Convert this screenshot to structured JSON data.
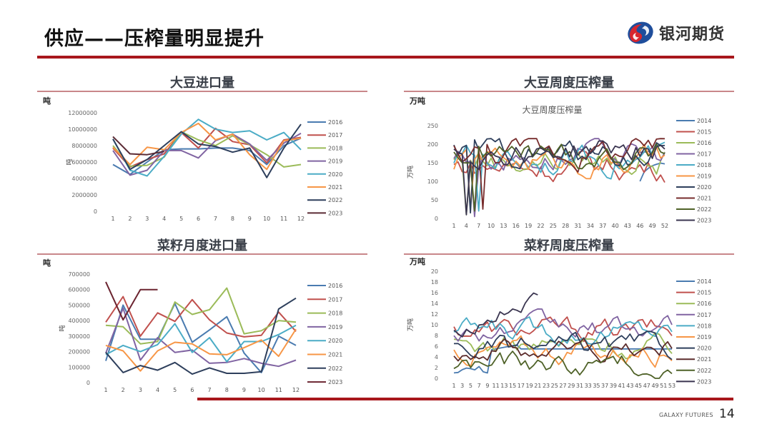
{
  "header": {
    "title": "供应——压榨量明显提升",
    "logo_text": "银河期货"
  },
  "footer": {
    "brand": "GALAXY FUTURES",
    "page_number": "14"
  },
  "panels": [
    {
      "title": "大豆进口量",
      "unit": "吨"
    },
    {
      "title": "大豆周度压榨量",
      "unit": "万吨"
    },
    {
      "title": "菜籽月度进口量",
      "unit": "吨"
    },
    {
      "title": "菜籽周度压榨量",
      "unit": "万吨"
    }
  ],
  "chart_data": [
    {
      "type": "line",
      "title": "大豆进口量",
      "ylabel": "吨",
      "ylim": [
        0,
        12000000
      ],
      "yticks": [
        0,
        2000000,
        4000000,
        6000000,
        8000000,
        10000000,
        12000000
      ],
      "categories": [
        "1",
        "2",
        "3",
        "4",
        "5",
        "6",
        "7",
        "8",
        "9",
        "10",
        "11",
        "12"
      ],
      "legend_position": "right",
      "series": [
        {
          "name": "2016",
          "color": "#4a7bb0",
          "values": [
            5700000,
            4500000,
            6000000,
            7500000,
            7600000,
            7600000,
            7700000,
            7700000,
            7400000,
            5700000,
            8000000,
            8900000
          ]
        },
        {
          "name": "2017",
          "color": "#c0504d",
          "values": [
            7700000,
            5400000,
            6300000,
            7000000,
            9600000,
            7700000,
            10100000,
            8500000,
            8100000,
            5900000,
            8700000,
            9000000
          ]
        },
        {
          "name": "2018",
          "color": "#9bbb59",
          "values": [
            8000000,
            5500000,
            5600000,
            6600000,
            9700000,
            8700000,
            8000000,
            9200000,
            8100000,
            6900000,
            5400000,
            5700000
          ]
        },
        {
          "name": "2019",
          "color": "#8064a2",
          "values": [
            7400000,
            4400000,
            5000000,
            7400000,
            7400000,
            6500000,
            8600000,
            9400000,
            8200000,
            6200000,
            8300000,
            9500000
          ]
        },
        {
          "name": "2020",
          "color": "#4bacc6",
          "values": [
            8800000,
            5000000,
            4300000,
            6700000,
            9400000,
            11200000,
            10000000,
            9600000,
            9800000,
            8700000,
            9600000,
            7500000
          ]
        },
        {
          "name": "2021",
          "color": "#f79646",
          "values": [
            7800000,
            5700000,
            7800000,
            7500000,
            9600000,
            10700000,
            8700000,
            9400000,
            6900000,
            5100000,
            8600000,
            8900000
          ]
        },
        {
          "name": "2022",
          "color": "#2e3f5c",
          "values": [
            8800000,
            5100000,
            6300000,
            8000000,
            9700000,
            8200000,
            7900000,
            7200000,
            7700000,
            4100000,
            7700000,
            10600000
          ]
        },
        {
          "name": "2023",
          "color": "#5b2b35",
          "values": [
            9100000,
            7000000,
            6900000,
            7300000,
            null,
            null,
            null,
            null,
            null,
            null,
            null,
            null
          ]
        }
      ]
    },
    {
      "type": "line",
      "title": "大豆周度压榨量",
      "ylabel": "万吨",
      "ylim": [
        0,
        250
      ],
      "yticks": [
        0,
        50,
        100,
        150,
        200,
        250
      ],
      "categories": [
        "1",
        "4",
        "7",
        "10",
        "13",
        "16",
        "19",
        "22",
        "25",
        "28",
        "31",
        "34",
        "37",
        "40",
        "43",
        "46",
        "49",
        "52"
      ],
      "x_count": 52,
      "legend_position": "right",
      "series": [
        {
          "name": "2014",
          "color": "#4a7bb0",
          "values": "weeks 46-52 only: 100,125,135,142,146,149,147"
        },
        {
          "name": "2015",
          "color": "#c0504d"
        },
        {
          "name": "2016",
          "color": "#9bbb59"
        },
        {
          "name": "2017",
          "color": "#8064a2"
        },
        {
          "name": "2018",
          "color": "#4bacc6"
        },
        {
          "name": "2019",
          "color": "#f79646"
        },
        {
          "name": "2020",
          "color": "#2e3f5c"
        },
        {
          "name": "2021",
          "color": "#772c2c"
        },
        {
          "name": "2022",
          "color": "#4f6228"
        },
        {
          "name": "2023",
          "color": "#3a3550"
        }
      ]
    },
    {
      "type": "line",
      "title": "菜籽月度进口量",
      "ylabel": "吨",
      "ylim": [
        0,
        700000
      ],
      "yticks": [
        0,
        100000,
        200000,
        300000,
        400000,
        500000,
        600000,
        700000
      ],
      "categories": [
        "1",
        "2",
        "3",
        "4",
        "5",
        "6",
        "7",
        "8",
        "9",
        "10",
        "11",
        "12"
      ],
      "legend_position": "right",
      "series": [
        {
          "name": "2016",
          "color": "#4a7bb0",
          "values": [
            140000,
            500000,
            280000,
            280000,
            510000,
            260000,
            340000,
            425000,
            190000,
            65000,
            300000,
            240000
          ]
        },
        {
          "name": "2017",
          "color": "#c0504d",
          "values": [
            390000,
            555000,
            300000,
            450000,
            395000,
            535000,
            405000,
            320000,
            295000,
            305000,
            455000,
            330000
          ]
        },
        {
          "name": "2018",
          "color": "#9bbb59",
          "values": [
            370000,
            360000,
            250000,
            265000,
            520000,
            440000,
            470000,
            610000,
            315000,
            335000,
            400000,
            390000
          ]
        },
        {
          "name": "2019",
          "color": "#8064a2",
          "values": [
            190000,
            480000,
            145000,
            290000,
            195000,
            210000,
            125000,
            130000,
            155000,
            125000,
            105000,
            145000
          ]
        },
        {
          "name": "2020",
          "color": "#4bacc6",
          "values": [
            180000,
            240000,
            200000,
            245000,
            380000,
            195000,
            290000,
            135000,
            265000,
            265000,
            310000,
            370000
          ]
        },
        {
          "name": "2021",
          "color": "#f79646",
          "values": [
            240000,
            205000,
            75000,
            205000,
            260000,
            250000,
            185000,
            180000,
            225000,
            275000,
            170000,
            345000
          ]
        },
        {
          "name": "2022",
          "color": "#2e3f5c",
          "values": [
            195000,
            65000,
            110000,
            80000,
            130000,
            55000,
            95000,
            60000,
            60000,
            70000,
            475000,
            545000
          ]
        },
        {
          "name": "2023",
          "color": "#6b2430",
          "values": [
            650000,
            405000,
            600000,
            600000,
            null,
            null,
            null,
            null,
            null,
            null,
            null,
            null
          ]
        }
      ]
    },
    {
      "type": "line",
      "title": "菜籽周度压榨量",
      "ylabel": "万吨",
      "ylim": [
        0,
        20
      ],
      "yticks": [
        0,
        2,
        4,
        6,
        8,
        10,
        12,
        14,
        16,
        18,
        20
      ],
      "categories": [
        "1",
        "3",
        "5",
        "7",
        "9",
        "11",
        "13",
        "15",
        "17",
        "19",
        "21",
        "23",
        "25",
        "27",
        "29",
        "31",
        "33",
        "35",
        "37",
        "39",
        "41",
        "43",
        "45",
        "47",
        "49",
        "51",
        "53"
      ],
      "x_count": 53,
      "legend_position": "right",
      "series": [
        {
          "name": "2014",
          "color": "#4a7bb0"
        },
        {
          "name": "2015",
          "color": "#c0504d"
        },
        {
          "name": "2016",
          "color": "#9bbb59"
        },
        {
          "name": "2017",
          "color": "#8064a2"
        },
        {
          "name": "2018",
          "color": "#4bacc6"
        },
        {
          "name": "2019",
          "color": "#f79646"
        },
        {
          "name": "2020",
          "color": "#2e3f5c"
        },
        {
          "name": "2021",
          "color": "#5b2b2b"
        },
        {
          "name": "2022",
          "color": "#4f6228"
        },
        {
          "name": "2023",
          "color": "#3a3550"
        }
      ]
    }
  ],
  "inner_titles": {
    "soy_weekly": "大豆周度压榨量"
  },
  "axis_titles": {
    "chart1": "吨",
    "chart2": "万吨",
    "chart3": "吨",
    "chart4": "万吨"
  }
}
